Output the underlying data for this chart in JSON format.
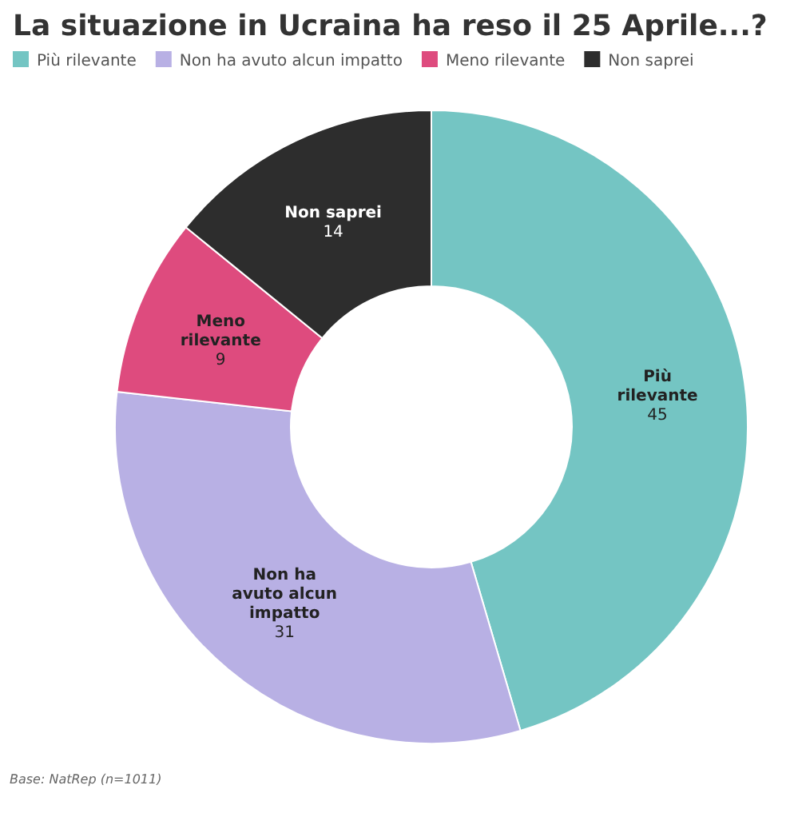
{
  "chart_data": {
    "type": "donut",
    "title": "La situazione in Ucraina ha reso il 25 Aprile...?",
    "categories": [
      "Più rilevante",
      "Non ha avuto alcun impatto",
      "Meno rilevante",
      "Non saprei"
    ],
    "values": [
      45,
      31,
      9,
      14
    ],
    "colors": [
      "#74c5c3",
      "#b8b0e4",
      "#de4b7e",
      "#2d2d2d"
    ],
    "data_labels": true,
    "legend": "top left",
    "annotations": [
      "Base: NatRep (n=1011)"
    ]
  }
}
